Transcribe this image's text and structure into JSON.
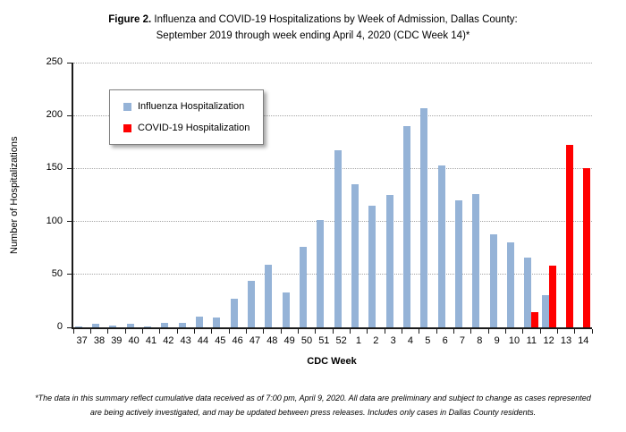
{
  "figure": {
    "title_bold": "Figure 2.",
    "title_rest": " Influenza and COVID-19 Hospitalizations by Week of Admission, Dallas County:",
    "title_line2": "September 2019 through week ending April 4, 2020 (CDC Week 14)*",
    "footnote": "*The data in this summary reflect cumulative data received as of 7:00 pm, April 9, 2020.  All data are preliminary and subject to change as cases represented are being actively investigated, and may be updated between press releases. Includes only cases in Dallas County residents."
  },
  "chart_data": {
    "type": "bar",
    "categories": [
      "37",
      "38",
      "39",
      "40",
      "41",
      "42",
      "43",
      "44",
      "45",
      "46",
      "47",
      "48",
      "49",
      "50",
      "51",
      "52",
      "1",
      "2",
      "3",
      "4",
      "5",
      "6",
      "7",
      "8",
      "9",
      "10",
      "11",
      "12",
      "13",
      "14"
    ],
    "series": [
      {
        "name": "Influenza Hospitalization",
        "color": "#95B3D7",
        "values": [
          1,
          3,
          2,
          3,
          1,
          4,
          4,
          10,
          9,
          27,
          44,
          59,
          33,
          76,
          101,
          167,
          135,
          115,
          125,
          190,
          207,
          153,
          120,
          126,
          88,
          80,
          66,
          30,
          0,
          0
        ]
      },
      {
        "name": "COVID-19 Hospitalization",
        "color": "#FF0000",
        "values": [
          0,
          0,
          0,
          0,
          0,
          0,
          0,
          0,
          0,
          0,
          0,
          0,
          0,
          0,
          0,
          0,
          0,
          0,
          0,
          0,
          0,
          0,
          0,
          0,
          0,
          0,
          14,
          58,
          172,
          150
        ]
      }
    ],
    "xlabel": "CDC Week",
    "ylabel": "Number of Hospitalizations",
    "ylim": [
      0,
      250
    ],
    "yticks": [
      0,
      50,
      100,
      150,
      200,
      250
    ],
    "grid": "horizontal-dotted",
    "legend_position": "top-left-inside"
  }
}
